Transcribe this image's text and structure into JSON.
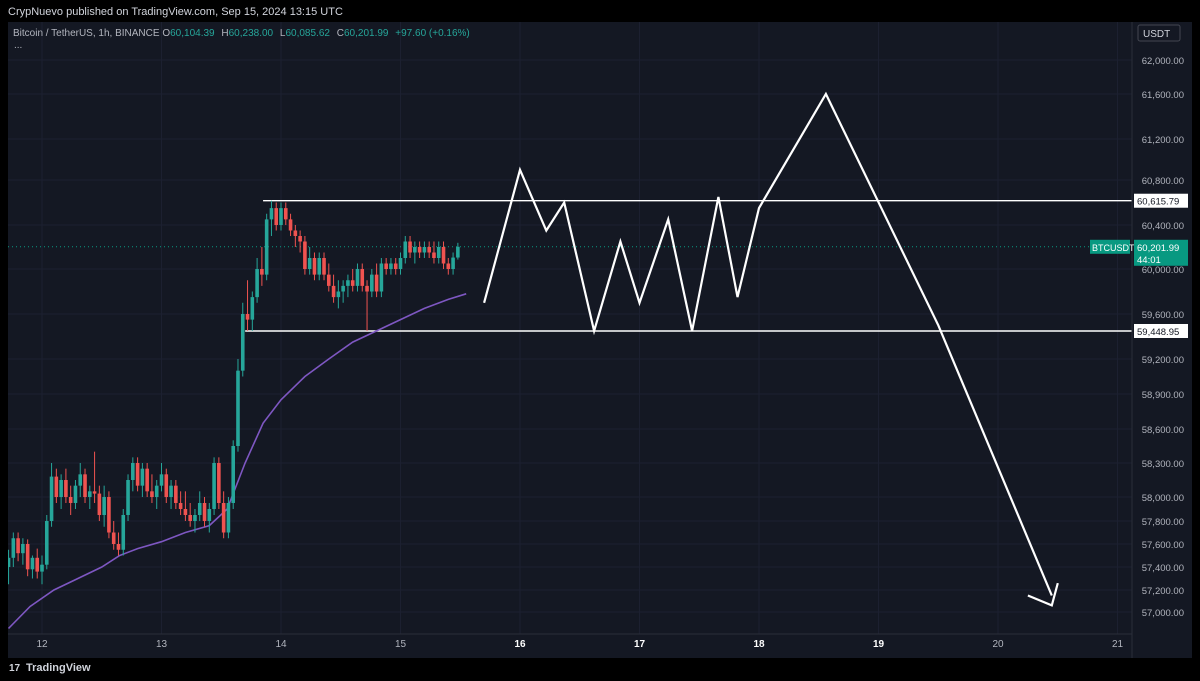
{
  "header": {
    "published": "CrypNuevo published on TradingView.com, Sep 15, 2024 13:15 UTC"
  },
  "legend": {
    "symbol": "Bitcoin / TetherUS, 1h, BINANCE",
    "open_label": "O",
    "open": "60,104.39",
    "high_label": "H",
    "high": "60,238.00",
    "low_label": "L",
    "low": "60,085.62",
    "close_label": "C",
    "close": "60,201.99",
    "change": "+97.60 (+0.16%)",
    "more": "..."
  },
  "footer": {
    "brand": "TradingView",
    "logo_text": "17"
  },
  "colors": {
    "background": "#141823",
    "up": "#26a69a",
    "down": "#ef5350",
    "ma_line": "#7e57c2",
    "drawing": "#ffffff",
    "price_tag": "#089981"
  },
  "chart_data": {
    "type": "candlestick",
    "currency_label": "USDT",
    "y_ticks": [
      "62,000.00",
      "61,600.00",
      "61,200.00",
      "60,800.00",
      "60,400.00",
      "60,000.00",
      "59,600.00",
      "59,200.00",
      "58,900.00",
      "58,600.00",
      "58,300.00",
      "58,000.00",
      "57,800.00",
      "57,600.00",
      "57,400.00",
      "57,200.00",
      "57,000.00"
    ],
    "y_tick_values": [
      62000,
      61600,
      61200,
      60800,
      60400,
      60000,
      59600,
      59200,
      58900,
      58600,
      58300,
      58000,
      57800,
      57600,
      57400,
      57200,
      57000
    ],
    "x_ticks": [
      "12",
      "13",
      "14",
      "15",
      "16",
      "17",
      "18",
      "19",
      "20",
      "21"
    ],
    "x_tick_values": [
      12,
      13,
      14,
      15,
      16,
      17,
      18,
      19,
      20,
      21
    ],
    "bold_x_ticks": [
      "16",
      "17",
      "18",
      "19"
    ],
    "last_price": {
      "symbol": "BTCUSDT",
      "price": "60,201.99",
      "countdown": "44:01",
      "value": 60201.99
    },
    "horizontal_levels": [
      {
        "label": "60,615.79",
        "value": 60615.79,
        "from_day": 13.85
      },
      {
        "label": "59,448.95",
        "value": 59448.95,
        "from_day": 13.7
      }
    ],
    "candles": [
      {
        "t": 11.72,
        "o": 57400,
        "h": 57550,
        "l": 57250,
        "c": 57480
      },
      {
        "t": 11.76,
        "o": 57480,
        "h": 57700,
        "l": 57400,
        "c": 57650
      },
      {
        "t": 11.8,
        "o": 57650,
        "h": 57700,
        "l": 57450,
        "c": 57520
      },
      {
        "t": 11.84,
        "o": 57520,
        "h": 57650,
        "l": 57420,
        "c": 57600
      },
      {
        "t": 11.88,
        "o": 57600,
        "h": 57640,
        "l": 57320,
        "c": 57380
      },
      {
        "t": 11.92,
        "o": 57380,
        "h": 57500,
        "l": 57300,
        "c": 57480
      },
      {
        "t": 11.96,
        "o": 57480,
        "h": 57560,
        "l": 57300,
        "c": 57360
      },
      {
        "t": 12.0,
        "o": 57360,
        "h": 57500,
        "l": 57250,
        "c": 57420
      },
      {
        "t": 12.04,
        "o": 57420,
        "h": 57850,
        "l": 57380,
        "c": 57800
      },
      {
        "t": 12.08,
        "o": 57800,
        "h": 58300,
        "l": 57750,
        "c": 58180
      },
      {
        "t": 12.12,
        "o": 58180,
        "h": 58250,
        "l": 57950,
        "c": 58000
      },
      {
        "t": 12.16,
        "o": 58000,
        "h": 58200,
        "l": 57900,
        "c": 58150
      },
      {
        "t": 12.2,
        "o": 58150,
        "h": 58250,
        "l": 57950,
        "c": 58000
      },
      {
        "t": 12.24,
        "o": 58000,
        "h": 58100,
        "l": 57850,
        "c": 57950
      },
      {
        "t": 12.28,
        "o": 57950,
        "h": 58150,
        "l": 57900,
        "c": 58100
      },
      {
        "t": 12.32,
        "o": 58100,
        "h": 58300,
        "l": 58000,
        "c": 58200
      },
      {
        "t": 12.36,
        "o": 58200,
        "h": 58250,
        "l": 57950,
        "c": 58000
      },
      {
        "t": 12.4,
        "o": 58000,
        "h": 58100,
        "l": 57900,
        "c": 58050
      },
      {
        "t": 12.44,
        "o": 58050,
        "h": 58400,
        "l": 57950,
        "c": 58030
      },
      {
        "t": 12.48,
        "o": 58030,
        "h": 58100,
        "l": 57800,
        "c": 57850
      },
      {
        "t": 12.52,
        "o": 57850,
        "h": 58100,
        "l": 57750,
        "c": 58000
      },
      {
        "t": 12.56,
        "o": 58000,
        "h": 58050,
        "l": 57650,
        "c": 57700
      },
      {
        "t": 12.6,
        "o": 57700,
        "h": 57800,
        "l": 57550,
        "c": 57600
      },
      {
        "t": 12.64,
        "o": 57600,
        "h": 57700,
        "l": 57500,
        "c": 57550
      },
      {
        "t": 12.68,
        "o": 57550,
        "h": 57900,
        "l": 57500,
        "c": 57850
      },
      {
        "t": 12.72,
        "o": 57850,
        "h": 58200,
        "l": 57800,
        "c": 58150
      },
      {
        "t": 12.76,
        "o": 58150,
        "h": 58350,
        "l": 58050,
        "c": 58300
      },
      {
        "t": 12.8,
        "o": 58300,
        "h": 58350,
        "l": 58050,
        "c": 58100
      },
      {
        "t": 12.84,
        "o": 58100,
        "h": 58300,
        "l": 58000,
        "c": 58250
      },
      {
        "t": 12.88,
        "o": 58250,
        "h": 58300,
        "l": 58000,
        "c": 58050
      },
      {
        "t": 12.92,
        "o": 58050,
        "h": 58200,
        "l": 57950,
        "c": 58000
      },
      {
        "t": 12.96,
        "o": 58000,
        "h": 58150,
        "l": 57900,
        "c": 58100
      },
      {
        "t": 13.0,
        "o": 58100,
        "h": 58300,
        "l": 58050,
        "c": 58200
      },
      {
        "t": 13.04,
        "o": 58200,
        "h": 58250,
        "l": 57950,
        "c": 58000
      },
      {
        "t": 13.08,
        "o": 58000,
        "h": 58150,
        "l": 57900,
        "c": 58100
      },
      {
        "t": 13.12,
        "o": 58100,
        "h": 58150,
        "l": 57900,
        "c": 57950
      },
      {
        "t": 13.16,
        "o": 57950,
        "h": 58050,
        "l": 57850,
        "c": 57900
      },
      {
        "t": 13.2,
        "o": 57900,
        "h": 58050,
        "l": 57800,
        "c": 57850
      },
      {
        "t": 13.24,
        "o": 57850,
        "h": 57950,
        "l": 57750,
        "c": 57800
      },
      {
        "t": 13.28,
        "o": 57800,
        "h": 57900,
        "l": 57700,
        "c": 57850
      },
      {
        "t": 13.32,
        "o": 57850,
        "h": 58050,
        "l": 57800,
        "c": 57950
      },
      {
        "t": 13.36,
        "o": 57950,
        "h": 58000,
        "l": 57750,
        "c": 57800
      },
      {
        "t": 13.4,
        "o": 57800,
        "h": 57950,
        "l": 57700,
        "c": 57900
      },
      {
        "t": 13.44,
        "o": 57900,
        "h": 58350,
        "l": 57850,
        "c": 58300
      },
      {
        "t": 13.48,
        "o": 58300,
        "h": 58350,
        "l": 57900,
        "c": 57950
      },
      {
        "t": 13.52,
        "o": 57950,
        "h": 58050,
        "l": 57650,
        "c": 57700
      },
      {
        "t": 13.56,
        "o": 57700,
        "h": 58000,
        "l": 57650,
        "c": 57950
      },
      {
        "t": 13.6,
        "o": 57950,
        "h": 58500,
        "l": 57900,
        "c": 58450
      },
      {
        "t": 13.64,
        "o": 58450,
        "h": 59200,
        "l": 58400,
        "c": 59100
      },
      {
        "t": 13.68,
        "o": 59100,
        "h": 59700,
        "l": 59050,
        "c": 59600
      },
      {
        "t": 13.72,
        "o": 59600,
        "h": 59900,
        "l": 59450,
        "c": 59550
      },
      {
        "t": 13.76,
        "o": 59550,
        "h": 59800,
        "l": 59450,
        "c": 59750
      },
      {
        "t": 13.8,
        "o": 59750,
        "h": 60100,
        "l": 59700,
        "c": 60000
      },
      {
        "t": 13.84,
        "o": 60000,
        "h": 60200,
        "l": 59850,
        "c": 59950
      },
      {
        "t": 13.88,
        "o": 59950,
        "h": 60500,
        "l": 59900,
        "c": 60450
      },
      {
        "t": 13.92,
        "o": 60450,
        "h": 60616,
        "l": 60300,
        "c": 60550
      },
      {
        "t": 13.96,
        "o": 60550,
        "h": 60600,
        "l": 60350,
        "c": 60400
      },
      {
        "t": 14.0,
        "o": 60400,
        "h": 60600,
        "l": 60350,
        "c": 60550
      },
      {
        "t": 14.04,
        "o": 60550,
        "h": 60600,
        "l": 60400,
        "c": 60450
      },
      {
        "t": 14.08,
        "o": 60450,
        "h": 60500,
        "l": 60300,
        "c": 60350
      },
      {
        "t": 14.12,
        "o": 60350,
        "h": 60400,
        "l": 60200,
        "c": 60300
      },
      {
        "t": 14.16,
        "o": 60300,
        "h": 60350,
        "l": 60150,
        "c": 60250
      },
      {
        "t": 14.2,
        "o": 60250,
        "h": 60300,
        "l": 59950,
        "c": 60000
      },
      {
        "t": 14.24,
        "o": 60000,
        "h": 60200,
        "l": 59950,
        "c": 60100
      },
      {
        "t": 14.28,
        "o": 60100,
        "h": 60150,
        "l": 59900,
        "c": 59950
      },
      {
        "t": 14.32,
        "o": 59950,
        "h": 60150,
        "l": 59900,
        "c": 60100
      },
      {
        "t": 14.36,
        "o": 60100,
        "h": 60150,
        "l": 59900,
        "c": 59950
      },
      {
        "t": 14.4,
        "o": 59950,
        "h": 60050,
        "l": 59800,
        "c": 59850
      },
      {
        "t": 14.44,
        "o": 59850,
        "h": 59950,
        "l": 59700,
        "c": 59750
      },
      {
        "t": 14.48,
        "o": 59750,
        "h": 59900,
        "l": 59650,
        "c": 59800
      },
      {
        "t": 14.52,
        "o": 59800,
        "h": 59900,
        "l": 59700,
        "c": 59850
      },
      {
        "t": 14.56,
        "o": 59850,
        "h": 59950,
        "l": 59750,
        "c": 59900
      },
      {
        "t": 14.6,
        "o": 59900,
        "h": 60000,
        "l": 59800,
        "c": 59850
      },
      {
        "t": 14.64,
        "o": 59850,
        "h": 60050,
        "l": 59800,
        "c": 60000
      },
      {
        "t": 14.68,
        "o": 60000,
        "h": 60050,
        "l": 59800,
        "c": 59850
      },
      {
        "t": 14.72,
        "o": 59850,
        "h": 59900,
        "l": 59450,
        "c": 59800
      },
      {
        "t": 14.76,
        "o": 59800,
        "h": 60000,
        "l": 59750,
        "c": 59950
      },
      {
        "t": 14.8,
        "o": 59950,
        "h": 60050,
        "l": 59750,
        "c": 59800
      },
      {
        "t": 14.84,
        "o": 59800,
        "h": 60100,
        "l": 59750,
        "c": 60050
      },
      {
        "t": 14.88,
        "o": 60050,
        "h": 60100,
        "l": 59950,
        "c": 60000
      },
      {
        "t": 14.92,
        "o": 60000,
        "h": 60100,
        "l": 59950,
        "c": 60050
      },
      {
        "t": 14.96,
        "o": 60050,
        "h": 60100,
        "l": 59950,
        "c": 60000
      },
      {
        "t": 15.0,
        "o": 60000,
        "h": 60150,
        "l": 59950,
        "c": 60100
      },
      {
        "t": 15.04,
        "o": 60100,
        "h": 60300,
        "l": 60050,
        "c": 60250
      },
      {
        "t": 15.08,
        "o": 60250,
        "h": 60300,
        "l": 60100,
        "c": 60150
      },
      {
        "t": 15.12,
        "o": 60150,
        "h": 60250,
        "l": 60050,
        "c": 60200
      },
      {
        "t": 15.16,
        "o": 60200,
        "h": 60250,
        "l": 60100,
        "c": 60150
      },
      {
        "t": 15.2,
        "o": 60150,
        "h": 60250,
        "l": 60100,
        "c": 60200
      },
      {
        "t": 15.24,
        "o": 60200,
        "h": 60250,
        "l": 60100,
        "c": 60150
      },
      {
        "t": 15.28,
        "o": 60150,
        "h": 60250,
        "l": 60050,
        "c": 60100
      },
      {
        "t": 15.32,
        "o": 60100,
        "h": 60250,
        "l": 60050,
        "c": 60200
      },
      {
        "t": 15.36,
        "o": 60200,
        "h": 60250,
        "l": 60000,
        "c": 60050
      },
      {
        "t": 15.4,
        "o": 60050,
        "h": 60100,
        "l": 59950,
        "c": 60000
      },
      {
        "t": 15.44,
        "o": 60000,
        "h": 60150,
        "l": 59950,
        "c": 60104
      },
      {
        "t": 15.48,
        "o": 60104.39,
        "h": 60238,
        "l": 60085.62,
        "c": 60201.99
      }
    ],
    "moving_average": {
      "t": [
        11.72,
        11.9,
        12.1,
        12.3,
        12.5,
        12.65,
        12.8,
        13.0,
        13.2,
        13.4,
        13.55,
        13.7,
        13.85,
        14.0,
        14.2,
        14.4,
        14.6,
        14.8,
        15.0,
        15.2,
        15.4,
        15.55
      ],
      "v": [
        56850,
        57050,
        57200,
        57300,
        57400,
        57500,
        57560,
        57620,
        57700,
        57760,
        57900,
        58300,
        58650,
        58850,
        59050,
        59200,
        59350,
        59450,
        59550,
        59650,
        59730,
        59780
      ]
    },
    "projection_path": {
      "t": [
        15.7,
        16.0,
        16.22,
        16.37,
        16.62,
        16.84,
        17.0,
        17.24,
        17.44,
        17.66,
        17.82,
        18.0,
        18.56,
        19.5,
        20.45
      ],
      "v": [
        59700,
        60900,
        60350,
        60600,
        59450,
        60250,
        59700,
        60450,
        59450,
        60650,
        59750,
        60550,
        61600,
        59500,
        57150
      ]
    },
    "arrow_head": {
      "t": [
        20.25,
        20.45,
        20.5
      ],
      "v": [
        57150,
        57060,
        57260
      ]
    }
  }
}
